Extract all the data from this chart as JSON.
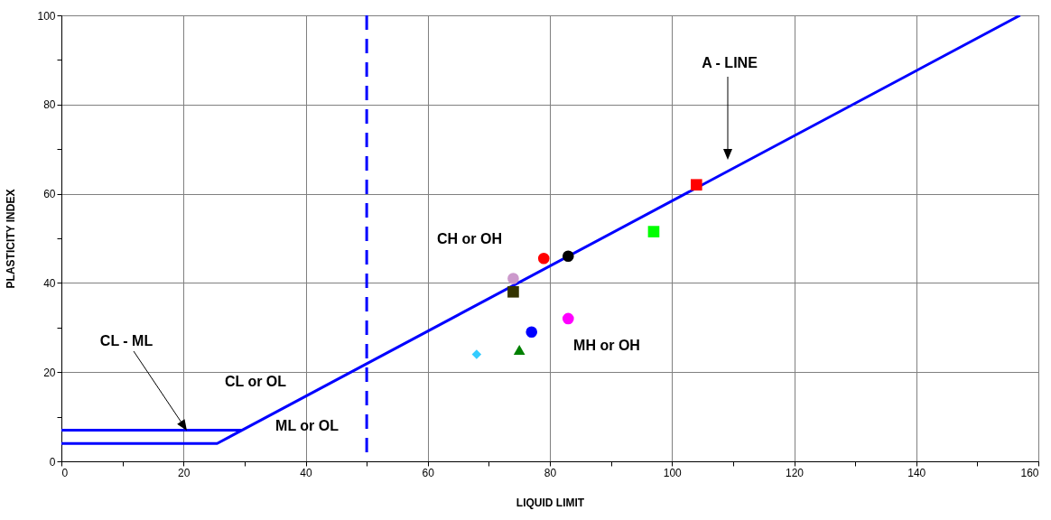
{
  "chart_data": {
    "type": "scatter",
    "xlabel": "LIQUID LIMIT",
    "ylabel": "PLASTICITY INDEX",
    "xlim": [
      0,
      160
    ],
    "ylim": [
      0,
      100
    ],
    "xticks": [
      0,
      {
        "value": 10,
        "label": null
      },
      20,
      {
        "value": 30,
        "label": null
      },
      40,
      {
        "value": 50,
        "label": null
      },
      60,
      {
        "value": 70,
        "label": null
      },
      80,
      {
        "value": 90,
        "label": null
      },
      100,
      {
        "value": 110,
        "label": null
      },
      120,
      {
        "value": 130,
        "label": null
      },
      140,
      {
        "value": 150,
        "label": null
      },
      160
    ],
    "yticks": [
      0,
      {
        "value": 10,
        "label": null
      },
      20,
      {
        "value": 30,
        "label": null
      },
      40,
      {
        "value": 50,
        "label": null
      },
      60,
      {
        "value": 70,
        "label": null
      },
      80,
      {
        "value": 90,
        "label": null
      },
      100
    ],
    "grid": true,
    "ref_lines": [
      {
        "axis": "x",
        "value": 50,
        "color": "#0000ff",
        "line_style": "dashed"
      }
    ],
    "series": [
      {
        "type": "line",
        "color": "#0000ff",
        "x": [
          0,
          25.5,
          157
        ],
        "values": [
          4,
          4,
          100
        ]
      },
      {
        "type": "line",
        "color": "#0000ff",
        "x": [
          0,
          29.6
        ],
        "values": [
          7,
          7
        ]
      },
      {
        "marker": "circle",
        "color": "#cc99cc",
        "x": [
          74
        ],
        "values": [
          41
        ]
      },
      {
        "marker": "square",
        "color": "#333300",
        "x": [
          74
        ],
        "values": [
          38
        ]
      },
      {
        "marker": "circle",
        "color": "#ff0000",
        "x": [
          79
        ],
        "values": [
          45.5
        ]
      },
      {
        "marker": "circle",
        "color": "#000000",
        "x": [
          83
        ],
        "values": [
          46
        ]
      },
      {
        "marker": "square",
        "color": "#00ff00",
        "x": [
          97
        ],
        "values": [
          51.5
        ]
      },
      {
        "marker": "square",
        "color": "#ff0000",
        "x": [
          104
        ],
        "values": [
          62
        ]
      },
      {
        "marker": "circle",
        "color": "#ff00ff",
        "x": [
          83
        ],
        "values": [
          32
        ]
      },
      {
        "marker": "circle",
        "color": "#0000ff",
        "x": [
          77
        ],
        "values": [
          29
        ]
      },
      {
        "marker": "triangle",
        "color": "#008000",
        "x": [
          75
        ],
        "values": [
          25
        ]
      },
      {
        "marker": "diamond",
        "color": "#33ccff",
        "x": [
          68
        ],
        "values": [
          24
        ]
      }
    ],
    "annotations": [
      "A - LINE",
      "CL - ML",
      "CH or OH",
      "CL or OL",
      "ML or OL",
      "MH or OH"
    ]
  }
}
